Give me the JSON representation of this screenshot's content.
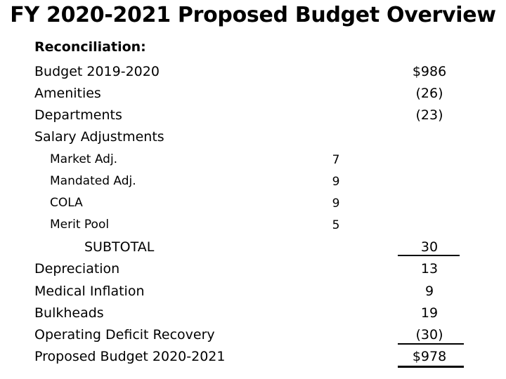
{
  "title": "FY 2020-2021 Proposed Budget Overview",
  "subtitle": "Reconciliation:",
  "rows": [
    {
      "label": "Budget 2019-2020",
      "amount": "$986"
    },
    {
      "label": "Amenities",
      "amount": "(26)"
    },
    {
      "label": "Departments",
      "amount": "(23)"
    },
    {
      "label": "Salary Adjustments",
      "amount": ""
    }
  ],
  "salary_items": [
    {
      "label": "Market Adj.",
      "value": "7"
    },
    {
      "label": "Mandated Adj.",
      "value": "9"
    },
    {
      "label": "COLA",
      "value": "9"
    },
    {
      "label": "Merit Pool",
      "value": "5"
    }
  ],
  "subtotal": {
    "label": "SUBTOTAL",
    "amount": "30"
  },
  "rows_after": [
    {
      "label": "Depreciation",
      "amount": "13"
    },
    {
      "label": "Medical Inflation",
      "amount": "9"
    },
    {
      "label": "Bulkheads",
      "amount": "19"
    },
    {
      "label": "Operating Deficit Recovery",
      "amount": "(30)"
    }
  ],
  "total": {
    "label": "Proposed Budget 2020-2021",
    "amount": "$978"
  }
}
